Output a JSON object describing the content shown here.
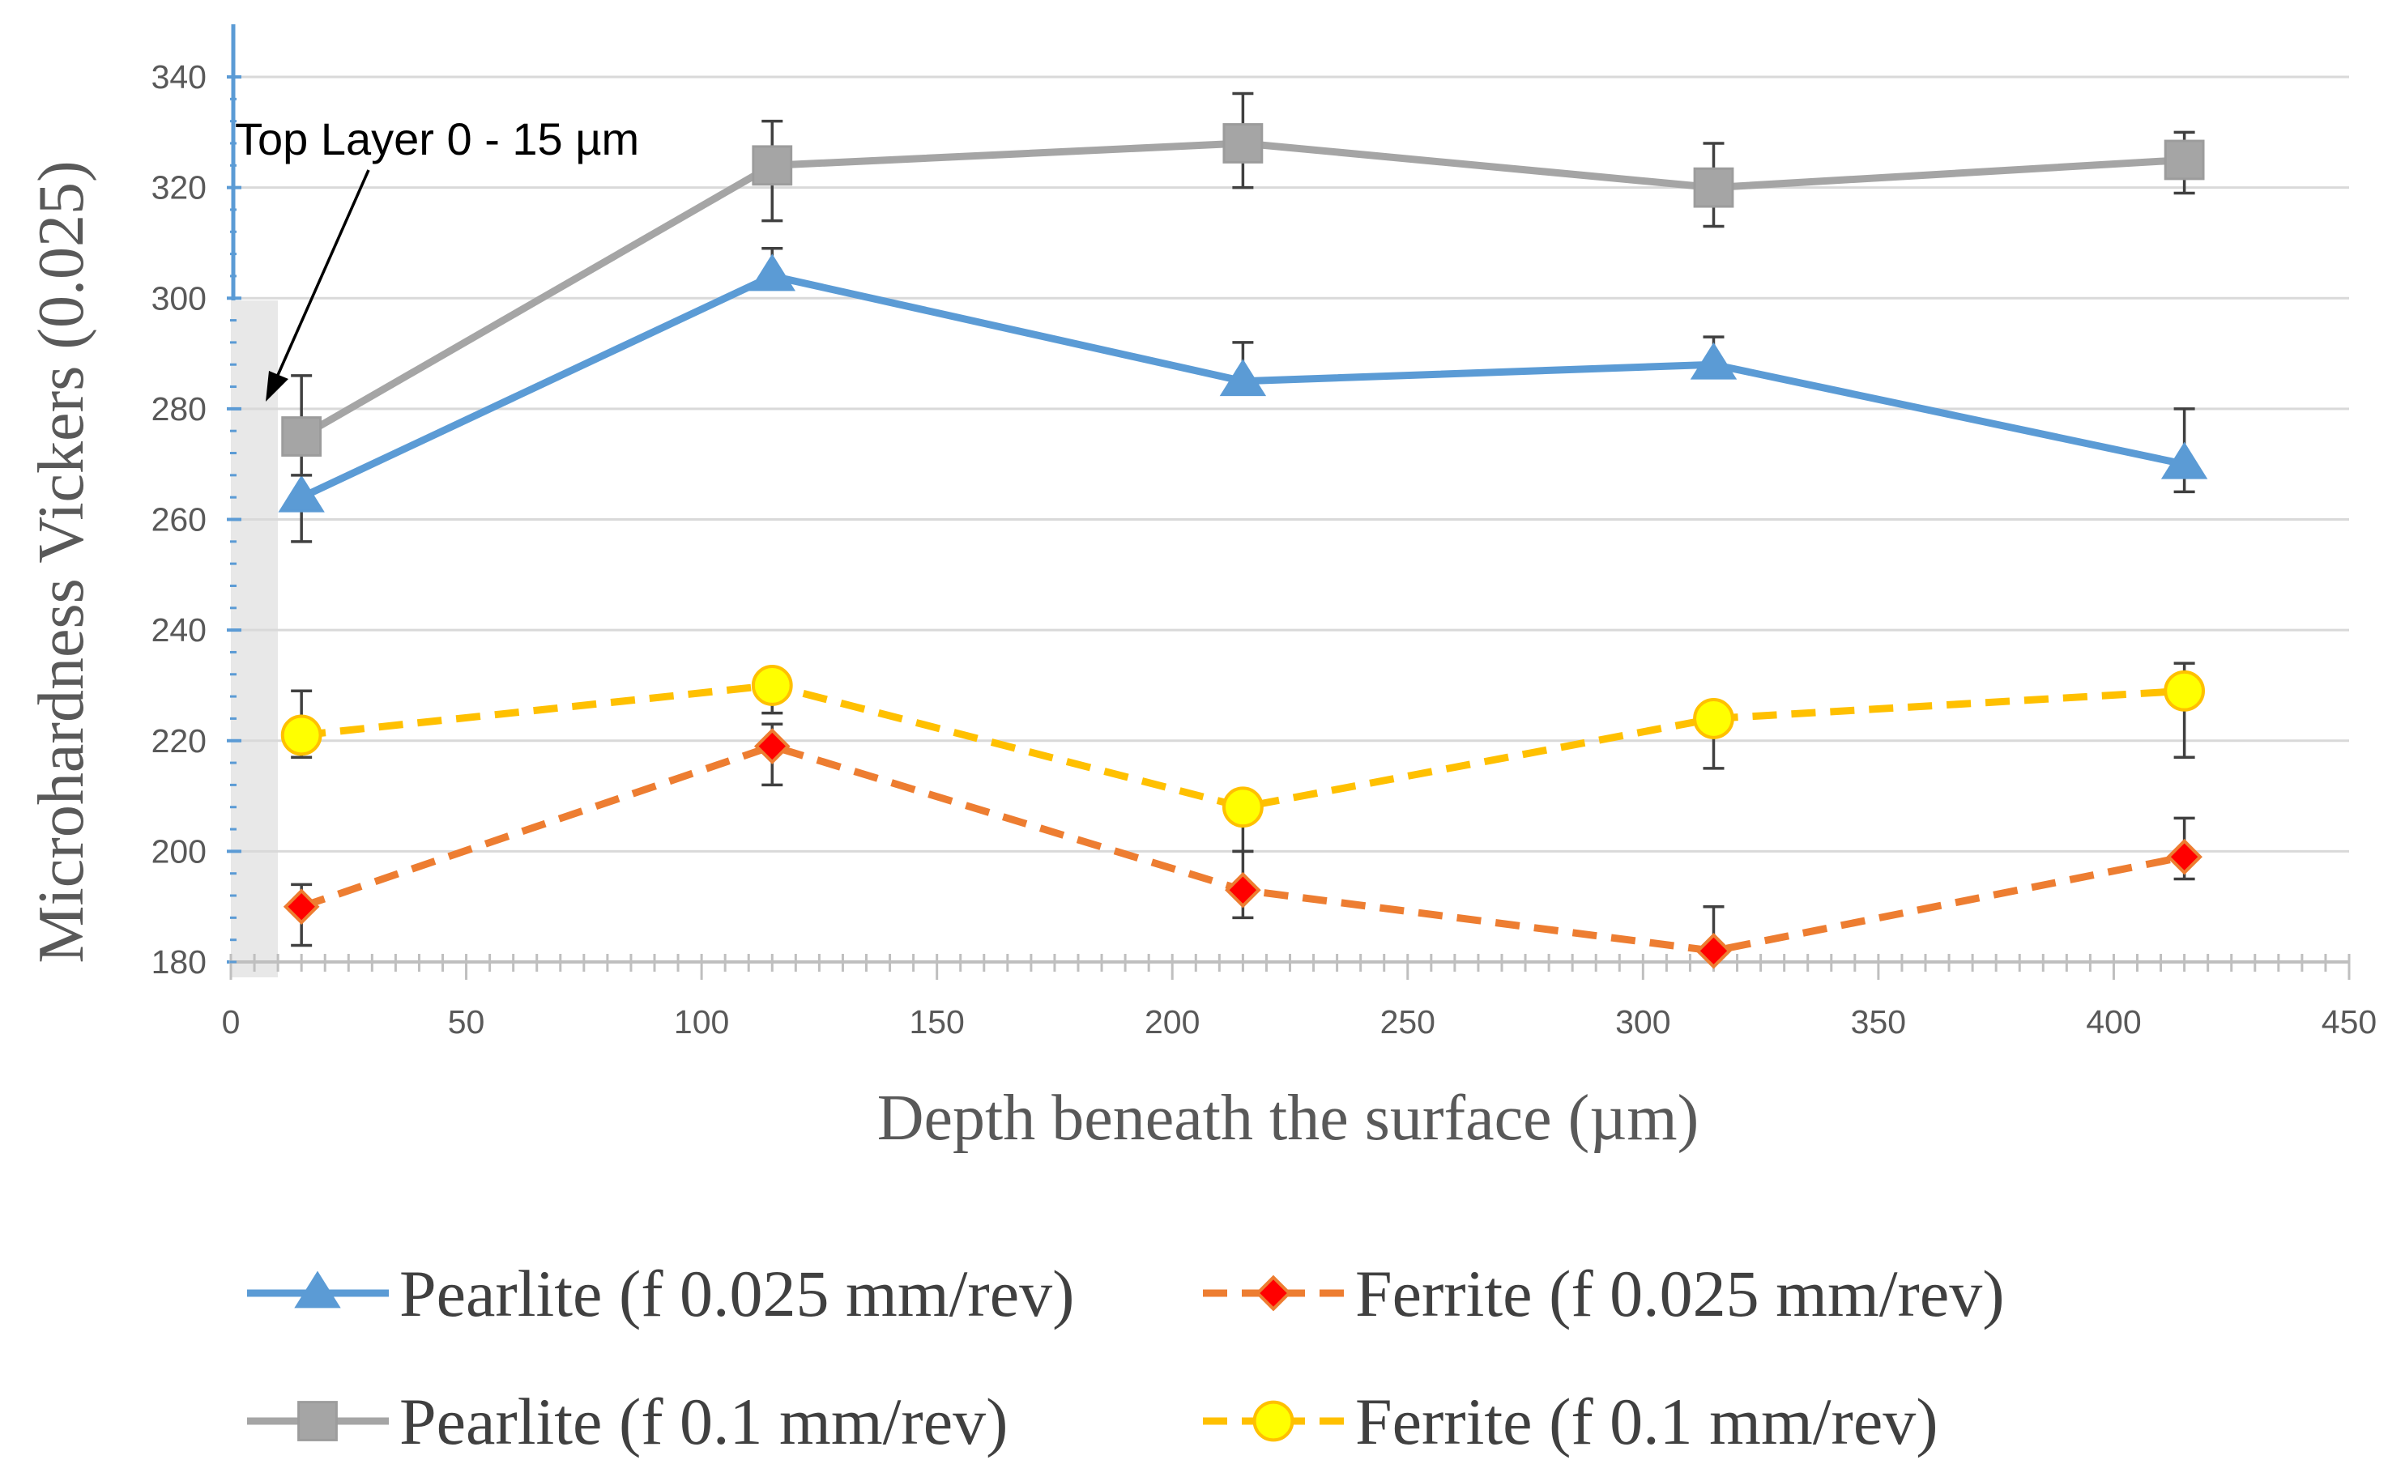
{
  "chart_data": {
    "type": "line",
    "title": "",
    "xlabel": "Depth beneath the surface (µm)",
    "ylabel": "Microhardness Vickers (0.025)",
    "xlim": [
      0,
      450
    ],
    "ylim": [
      180,
      340
    ],
    "x_ticks": [
      0,
      50,
      100,
      150,
      200,
      250,
      300,
      350,
      400,
      450
    ],
    "y_ticks": [
      180,
      200,
      220,
      240,
      260,
      280,
      300,
      320,
      340
    ],
    "grid": "horizontal",
    "legend_position": "bottom",
    "x": [
      15,
      115,
      215,
      315,
      415
    ],
    "series": [
      {
        "name": "Pearlite (f 0.025 mm/rev)",
        "values": [
          264,
          304,
          285,
          288,
          270
        ],
        "err_low": [
          8,
          0,
          0,
          0,
          5
        ],
        "err_high": [
          0,
          5,
          7,
          5,
          10
        ],
        "color": "#5B9BD5",
        "marker": "triangle",
        "dash": "solid"
      },
      {
        "name": "Ferrite (f 0.025 mm/rev)",
        "values": [
          190,
          219,
          193,
          182,
          199
        ],
        "err_low": [
          7,
          7,
          5,
          0,
          4
        ],
        "err_high": [
          4,
          4,
          7,
          8,
          7
        ],
        "color": "#ED7D31",
        "marker_fill": "#FF0000",
        "marker": "diamond",
        "dash": "dashed"
      },
      {
        "name": "Pearlite (f 0.1 mm/rev)",
        "values": [
          275,
          324,
          328,
          320,
          325
        ],
        "err_low": [
          7,
          10,
          8,
          7,
          6
        ],
        "err_high": [
          11,
          8,
          9,
          8,
          5
        ],
        "color": "#A5A5A5",
        "marker": "square",
        "dash": "solid"
      },
      {
        "name": "Ferrite (f 0.1 mm/rev)",
        "values": [
          221,
          230,
          208,
          224,
          229
        ],
        "err_low": [
          4,
          5,
          8,
          9,
          12
        ],
        "err_high": [
          8,
          0,
          0,
          0,
          5
        ],
        "color": "#FFC000",
        "marker_fill": "#FFFF00",
        "marker": "circle",
        "dash": "dashed"
      }
    ],
    "annotations": [
      {
        "text": "Top Layer 0 - 15 µm",
        "shaded_x_range": [
          0,
          10
        ]
      }
    ]
  }
}
